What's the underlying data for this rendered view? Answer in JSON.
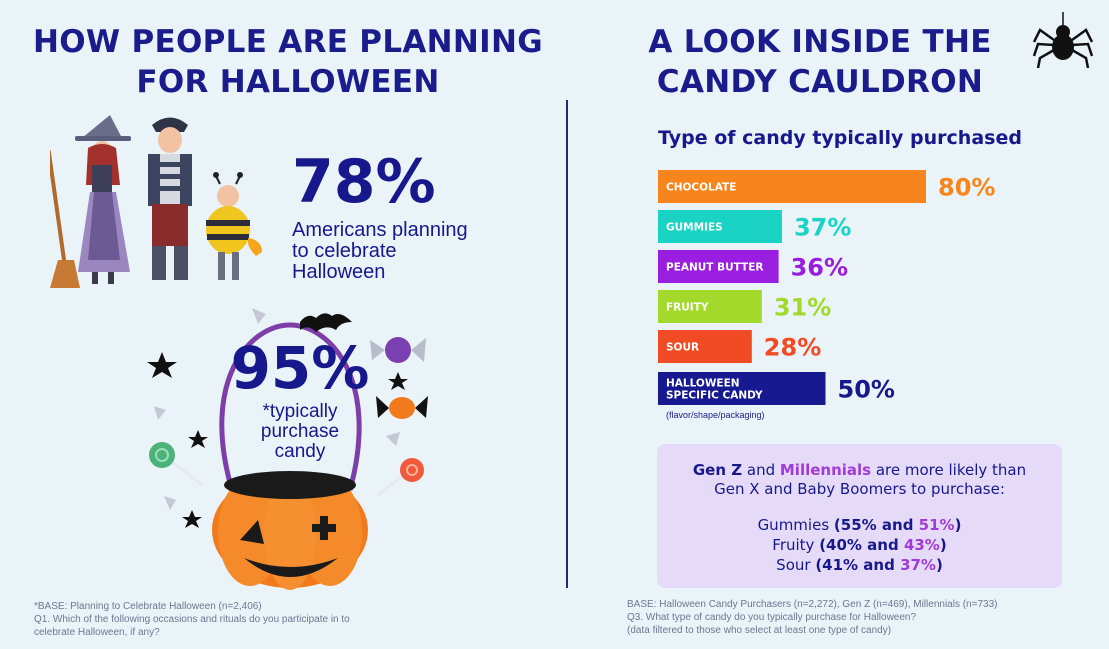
{
  "left": {
    "title_line1": "HOW PEOPLE ARE PLANNING",
    "title_line2": "FOR HALLOWEEN",
    "stat1_value": "78%",
    "stat1_text_lines": [
      "Americans planning",
      "to celebrate",
      "Halloween"
    ],
    "stat2_value": "95%",
    "stat2_text_lines": [
      "*typically",
      "purchase",
      "candy"
    ],
    "base_lines": [
      "*BASE: Planning to Celebrate Halloween (n=2,406)",
      "Q1. Which of the following occasions and rituals do you participate in to",
      "celebrate Halloween, if any?"
    ]
  },
  "right": {
    "title_line1": "A LOOK INSIDE THE",
    "title_line2": "CANDY CAULDRON",
    "note": "(flavor/shape/packaging)",
    "gen_box": {
      "genz": "Gen Z",
      "and": " and ",
      "millennials": "Millennials",
      "rest1": " are more likely than",
      "line2": "Gen X and Baby Boomers to purchase:",
      "items": [
        {
          "label": "Gummies ",
          "open": "(",
          "v1": "55%",
          "mid": " and ",
          "v2": "51%",
          "close": ")"
        },
        {
          "label": "Fruity ",
          "open": "(",
          "v1": "40%",
          "mid": " and ",
          "v2": "43%",
          "close": ")"
        },
        {
          "label": "Sour ",
          "open": "(",
          "v1": "41%",
          "mid": " and ",
          "v2": "37%",
          "close": ")"
        }
      ]
    },
    "base_lines": [
      "BASE: Halloween Candy Purchasers (n=2,272), Gen Z (n=469), Millennials (n=733)",
      "Q3. What type of candy do you typically purchase for Halloween?",
      "(data filtered to those who select at least one type of candy)"
    ]
  },
  "chart_data": {
    "type": "bar",
    "orientation": "horizontal",
    "title": "Type of candy typically purchased",
    "categories": [
      "CHOCOLATE",
      "GUMMIES",
      "PEANUT BUTTER",
      "FRUITY",
      "SOUR",
      "HALLOWEEN SPECIFIC CANDY"
    ],
    "category_lines": [
      [
        "CHOCOLATE"
      ],
      [
        "GUMMIES"
      ],
      [
        "PEANUT BUTTER"
      ],
      [
        "FRUITY"
      ],
      [
        "SOUR"
      ],
      [
        "HALLOWEEN",
        "SPECIFIC CANDY"
      ]
    ],
    "values": [
      80,
      37,
      36,
      31,
      28,
      50
    ],
    "value_labels": [
      "80%",
      "37%",
      "36%",
      "31%",
      "28%",
      "50%"
    ],
    "colors": [
      "#f7851c",
      "#1bd3c5",
      "#9a1ee0",
      "#a3d92b",
      "#f04b25",
      "#16198f"
    ],
    "xlim": [
      0,
      100
    ],
    "grid": false,
    "legend": "none"
  }
}
